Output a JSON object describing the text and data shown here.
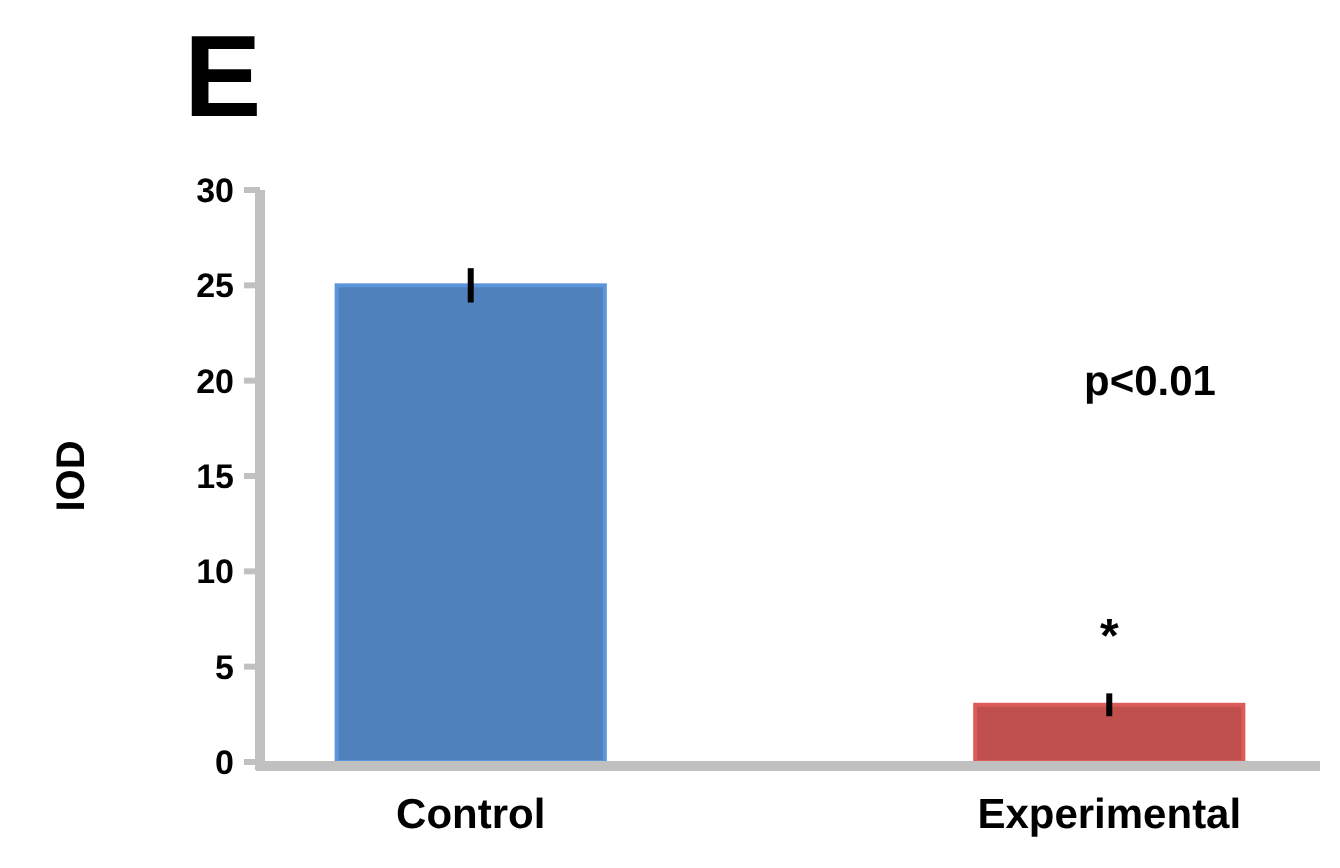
{
  "chart_data": {
    "type": "bar",
    "title": "E",
    "ylabel": "IOD",
    "categories": [
      "Control",
      "Experimental"
    ],
    "values": [
      25,
      3
    ],
    "colors": [
      "#4f81bd",
      "#c0504d"
    ],
    "errors": [
      0.9,
      0.6
    ],
    "ylim": [
      0,
      30
    ],
    "yticks": [
      0,
      5,
      10,
      15,
      20,
      25,
      30
    ],
    "grid": false,
    "annotations": [
      "p<0.01",
      "*"
    ]
  }
}
